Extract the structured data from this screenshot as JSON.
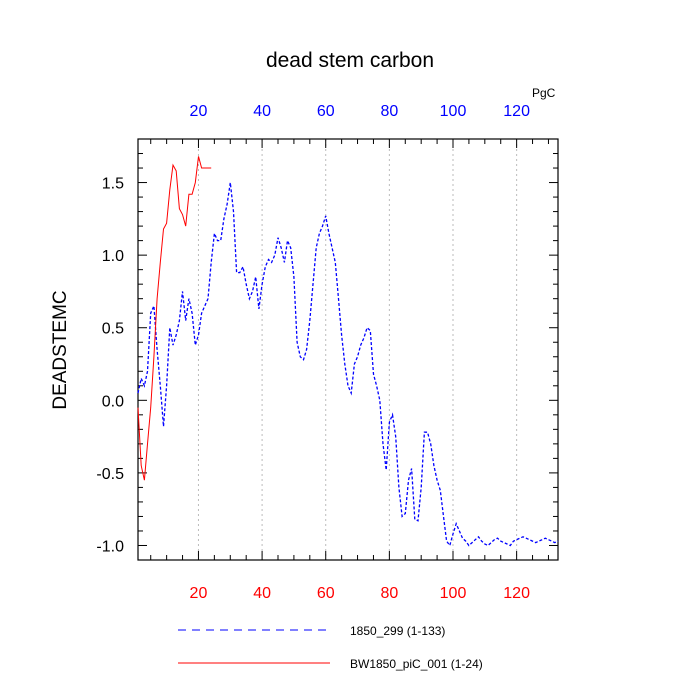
{
  "chart_data": {
    "type": "line",
    "title": "dead stem carbon",
    "ylabel": "DEADSTEMC",
    "top_axis_units": "PgC",
    "xlim": [
      1,
      133
    ],
    "ylim": [
      -1.1,
      1.8
    ],
    "x_ticks": [
      20,
      40,
      60,
      80,
      100,
      120
    ],
    "y_ticks": [
      1.5,
      1.0,
      0.5,
      0.0,
      -0.5,
      -1.0
    ],
    "y_tick_labels": [
      "1.5",
      "1.0",
      "0.5",
      "0.0",
      "-0.5",
      "-1.0"
    ],
    "grid_vertical": true,
    "bottom_tick_color": "#ff0000",
    "top_tick_color": "#0000ff",
    "series": [
      {
        "name": "1850_299 (1-133)",
        "color": "#0000ff",
        "dash": "dashed",
        "x": [
          1,
          2,
          3,
          4,
          5,
          6,
          7,
          8,
          9,
          10,
          11,
          12,
          13,
          14,
          15,
          16,
          17,
          18,
          19,
          20,
          21,
          22,
          23,
          24,
          25,
          26,
          27,
          28,
          29,
          30,
          31,
          32,
          33,
          34,
          35,
          36,
          37,
          38,
          39,
          40,
          41,
          42,
          43,
          44,
          45,
          46,
          47,
          48,
          49,
          50,
          51,
          52,
          53,
          54,
          55,
          56,
          57,
          58,
          59,
          60,
          61,
          62,
          63,
          64,
          65,
          66,
          67,
          68,
          69,
          70,
          71,
          72,
          73,
          74,
          75,
          76,
          77,
          78,
          79,
          80,
          81,
          82,
          83,
          84,
          85,
          86,
          87,
          88,
          89,
          90,
          91,
          92,
          93,
          94,
          95,
          96,
          97,
          98,
          99,
          100,
          101,
          102,
          103,
          104,
          105,
          106,
          107,
          108,
          109,
          110,
          111,
          112,
          113,
          114,
          115,
          116,
          117,
          118,
          119,
          120,
          121,
          122,
          123,
          124,
          125,
          126,
          127,
          128,
          129,
          130,
          131,
          132,
          133
        ],
        "y": [
          0.05,
          0.15,
          0.1,
          0.2,
          0.6,
          0.65,
          0.35,
          0.1,
          -0.18,
          0.1,
          0.5,
          0.38,
          0.45,
          0.55,
          0.75,
          0.55,
          0.7,
          0.6,
          0.38,
          0.45,
          0.6,
          0.65,
          0.7,
          0.95,
          1.15,
          1.1,
          1.1,
          1.25,
          1.35,
          1.5,
          1.3,
          0.88,
          0.88,
          0.92,
          0.8,
          0.7,
          0.75,
          0.85,
          0.63,
          0.8,
          0.92,
          0.97,
          0.95,
          1.0,
          1.12,
          1.05,
          0.95,
          1.1,
          1.05,
          0.85,
          0.4,
          0.3,
          0.28,
          0.35,
          0.55,
          0.8,
          1.05,
          1.15,
          1.2,
          1.27,
          1.15,
          1.05,
          0.95,
          0.7,
          0.45,
          0.25,
          0.1,
          0.05,
          0.25,
          0.3,
          0.38,
          0.43,
          0.5,
          0.48,
          0.18,
          0.1,
          0.0,
          -0.3,
          -0.48,
          -0.15,
          -0.1,
          -0.25,
          -0.6,
          -0.8,
          -0.78,
          -0.55,
          -0.47,
          -0.82,
          -0.83,
          -0.6,
          -0.22,
          -0.22,
          -0.3,
          -0.45,
          -0.55,
          -0.62,
          -0.8,
          -0.97,
          -1.0,
          -0.92,
          -0.85,
          -0.9,
          -0.95,
          -0.97,
          -1.0,
          -0.98,
          -0.96,
          -0.94,
          -0.97,
          -0.99,
          -1.0,
          -0.98,
          -0.96,
          -0.95,
          -0.97,
          -0.98,
          -0.99,
          -1.0,
          -0.97,
          -0.96,
          -0.95,
          -0.94,
          -0.95,
          -0.96,
          -0.97,
          -0.98,
          -0.97,
          -0.96,
          -0.95,
          -0.96,
          -0.97,
          -0.98,
          -0.97
        ]
      },
      {
        "name": "BW1850_piC_001 (1-24)",
        "color": "#ff0000",
        "dash": "solid",
        "x": [
          1,
          2,
          3,
          4,
          5,
          6,
          7,
          8,
          9,
          10,
          11,
          12,
          13,
          14,
          15,
          16,
          17,
          18,
          19,
          20,
          21,
          22,
          23,
          24
        ],
        "y": [
          -0.05,
          -0.45,
          -0.55,
          -0.3,
          -0.05,
          0.3,
          0.7,
          0.95,
          1.18,
          1.22,
          1.45,
          1.62,
          1.58,
          1.32,
          1.28,
          1.2,
          1.42,
          1.42,
          1.5,
          1.68,
          1.6,
          1.6,
          1.6,
          1.6
        ]
      }
    ],
    "legend_placement": "bottom"
  }
}
